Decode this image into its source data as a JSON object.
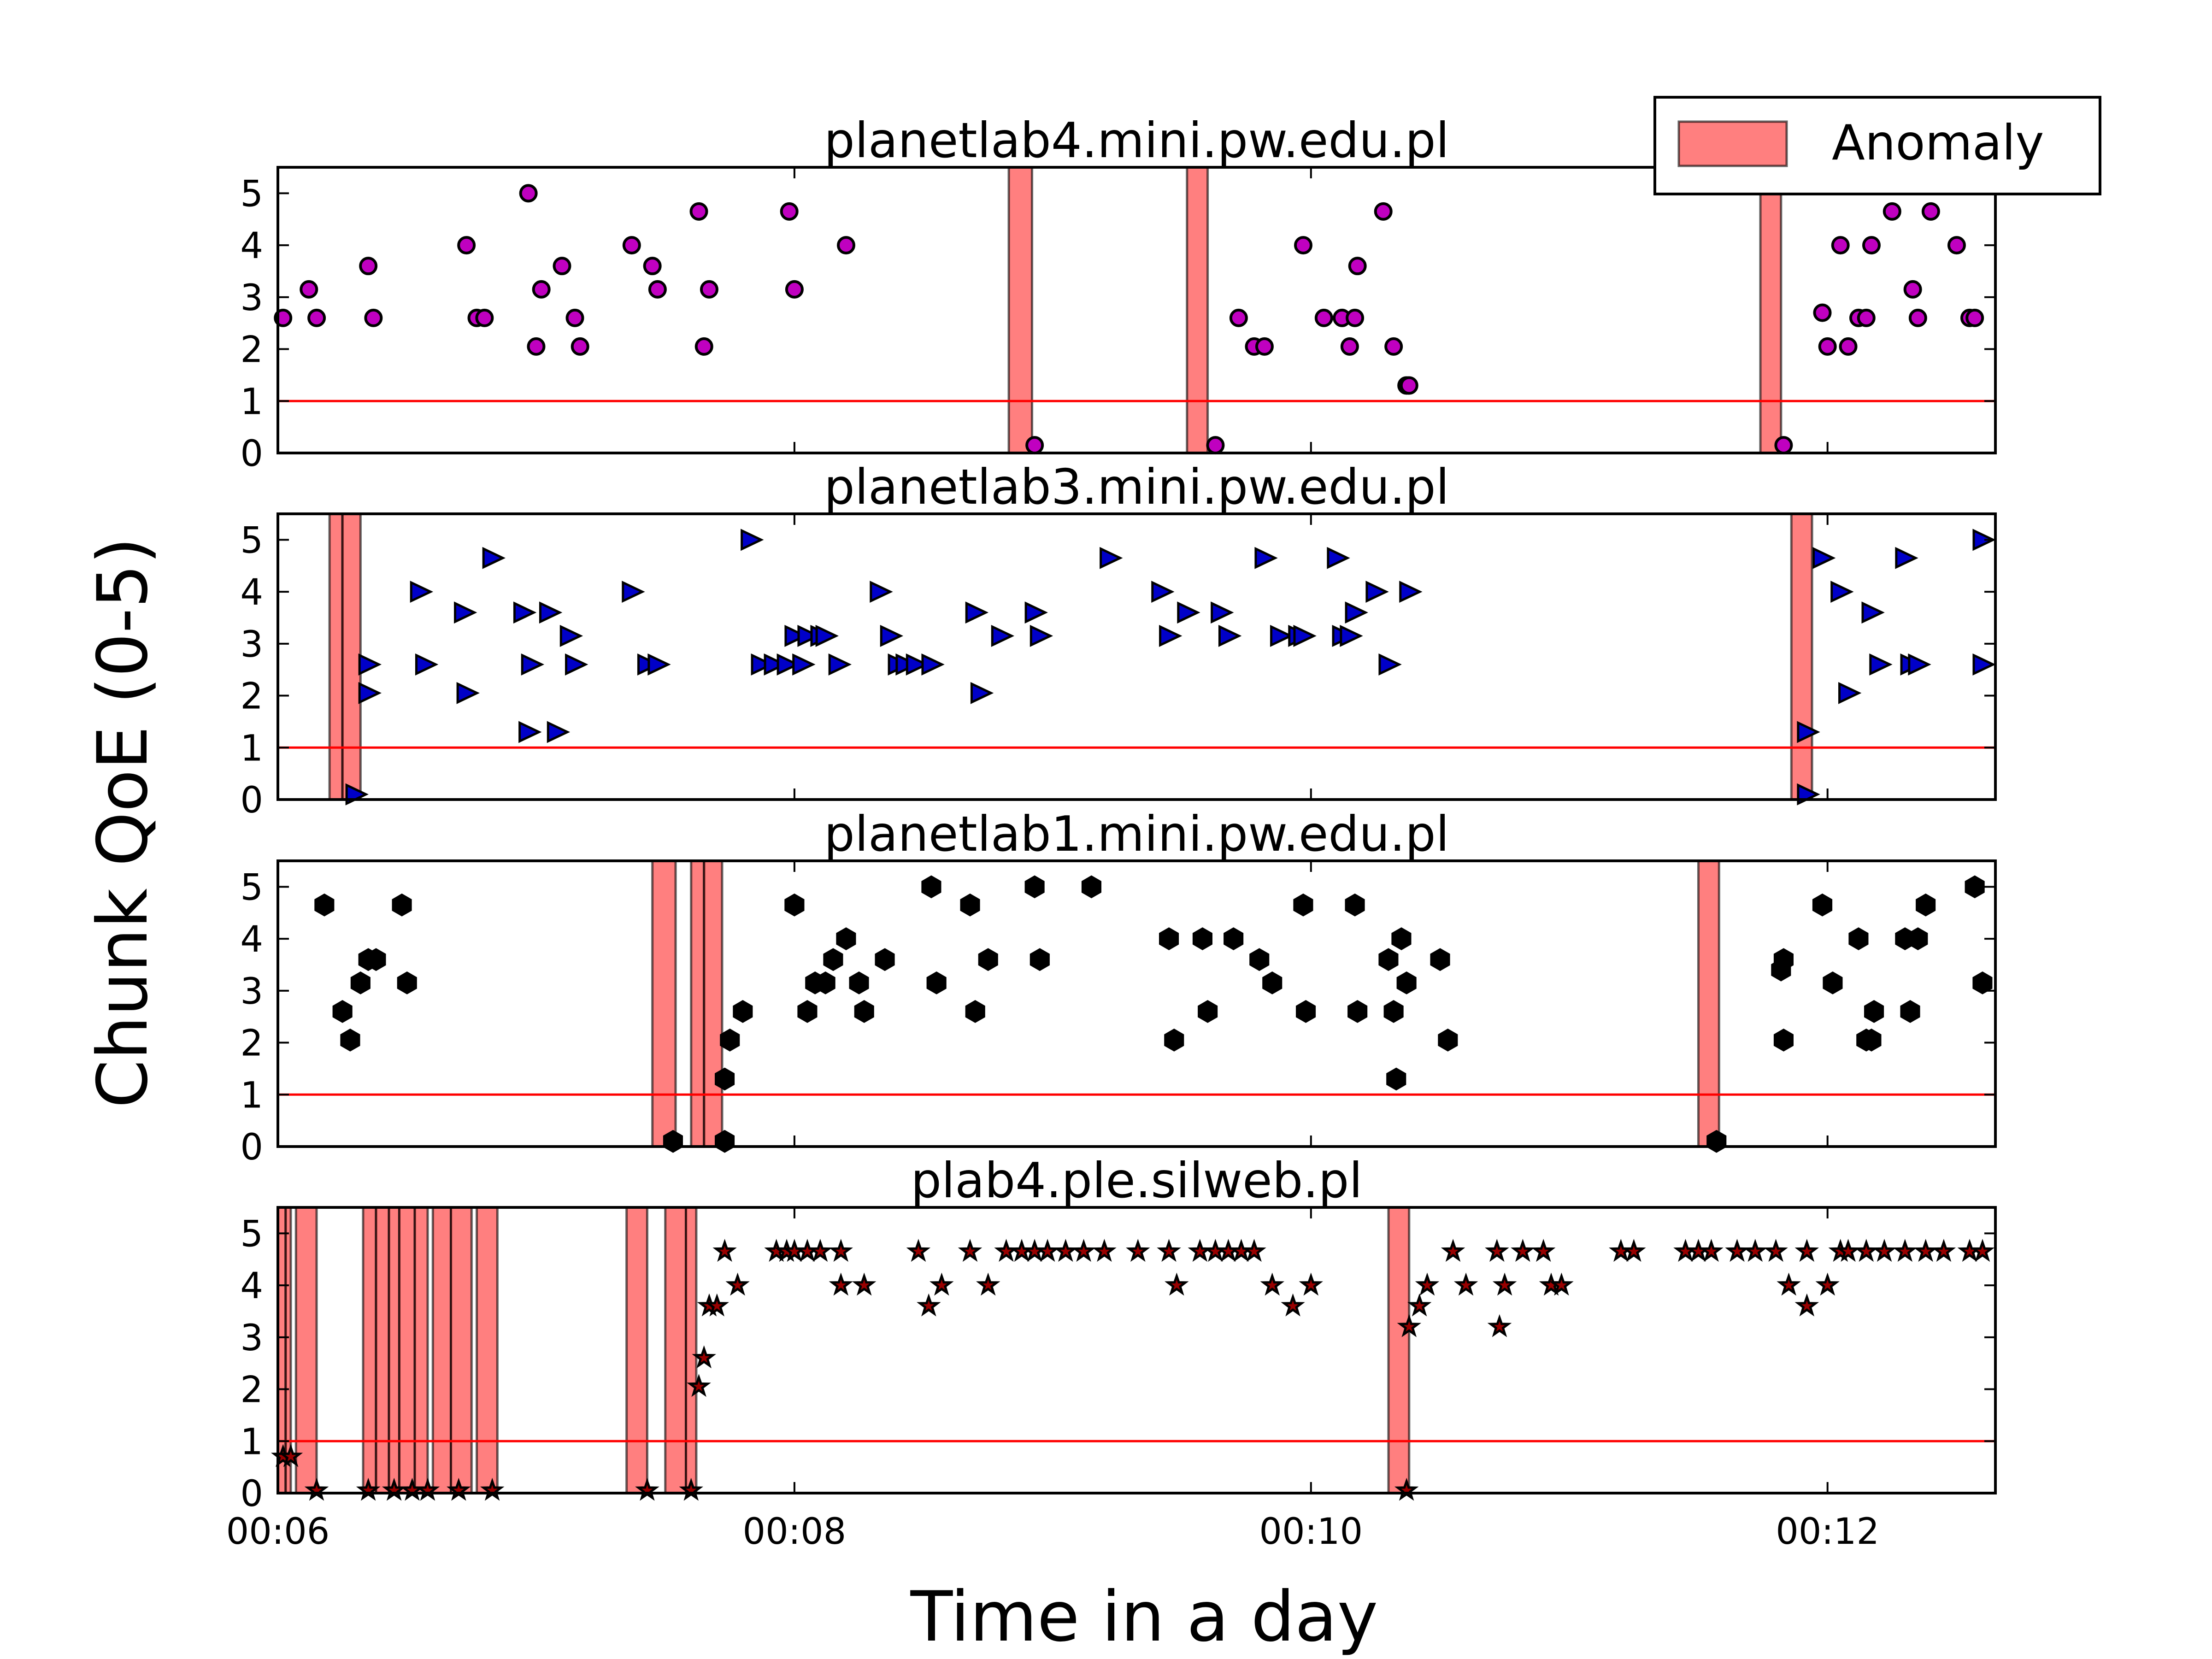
{
  "chart_data": {
    "type": "scatter",
    "ylabel": "Chunk QoE (0-5)",
    "xlabel": "Time in a day",
    "x_unit": "minutes",
    "xlim": [
      6.0,
      12.65
    ],
    "ylim": [
      0,
      5.5
    ],
    "x_ticks": [
      {
        "value": 6,
        "label": "00:06"
      },
      {
        "value": 8,
        "label": "00:08"
      },
      {
        "value": 10,
        "label": "00:10"
      },
      {
        "value": 12,
        "label": "00:12"
      }
    ],
    "y_ticks": [
      "0",
      "1",
      "2",
      "3",
      "4",
      "5"
    ],
    "threshold": 1,
    "legend": {
      "label": "Anomaly",
      "placement": "top-right"
    },
    "colors": {
      "anomaly": "#ff0000",
      "threshold": "#ff0000",
      "marker_edge": "#000000"
    },
    "panels": [
      {
        "title": "planetlab4.mini.pw.edu.pl",
        "marker": "circle",
        "color": "#c000c0",
        "anomalies": [
          [
            8.83,
            8.92
          ],
          [
            9.52,
            9.6
          ],
          [
            11.74,
            11.82
          ]
        ],
        "points": [
          [
            6.02,
            2.6
          ],
          [
            6.12,
            3.15
          ],
          [
            6.15,
            2.6
          ],
          [
            6.35,
            3.6
          ],
          [
            6.37,
            2.6
          ],
          [
            6.73,
            4.0
          ],
          [
            6.77,
            2.6
          ],
          [
            6.8,
            2.6
          ],
          [
            6.97,
            5.0
          ],
          [
            7.0,
            2.05
          ],
          [
            7.02,
            3.15
          ],
          [
            7.1,
            3.6
          ],
          [
            7.15,
            2.6
          ],
          [
            7.17,
            2.05
          ],
          [
            7.37,
            4.0
          ],
          [
            7.45,
            3.6
          ],
          [
            7.47,
            3.15
          ],
          [
            7.63,
            4.65
          ],
          [
            7.65,
            2.05
          ],
          [
            7.67,
            3.15
          ],
          [
            7.98,
            4.65
          ],
          [
            8.0,
            3.15
          ],
          [
            8.2,
            4.0
          ],
          [
            8.93,
            0.15
          ],
          [
            9.63,
            0.15
          ],
          [
            9.72,
            2.6
          ],
          [
            9.78,
            2.05
          ],
          [
            9.82,
            2.05
          ],
          [
            9.97,
            4.0
          ],
          [
            10.05,
            2.6
          ],
          [
            10.12,
            2.6
          ],
          [
            10.15,
            2.05
          ],
          [
            10.17,
            2.6
          ],
          [
            10.18,
            3.6
          ],
          [
            10.28,
            4.65
          ],
          [
            10.32,
            2.05
          ],
          [
            10.37,
            1.3
          ],
          [
            10.38,
            1.3
          ],
          [
            11.83,
            0.15
          ],
          [
            11.98,
            2.7
          ],
          [
            12.0,
            2.05
          ],
          [
            12.05,
            4.0
          ],
          [
            12.08,
            2.05
          ],
          [
            12.12,
            2.6
          ],
          [
            12.15,
            2.6
          ],
          [
            12.17,
            4.0
          ],
          [
            12.25,
            4.65
          ],
          [
            12.33,
            3.15
          ],
          [
            12.35,
            2.6
          ],
          [
            12.4,
            4.65
          ],
          [
            12.5,
            4.0
          ],
          [
            12.55,
            2.6
          ],
          [
            12.57,
            2.6
          ]
        ]
      },
      {
        "title": "planetlab3.mini.pw.edu.pl",
        "marker": "triangle-right",
        "color": "#0000c8",
        "anomalies": [
          [
            6.2,
            6.25
          ],
          [
            6.25,
            6.32
          ],
          [
            11.86,
            11.94
          ]
        ],
        "points": [
          [
            6.3,
            0.1
          ],
          [
            6.35,
            2.6
          ],
          [
            6.35,
            2.05
          ],
          [
            6.55,
            4.0
          ],
          [
            6.57,
            2.6
          ],
          [
            6.72,
            3.6
          ],
          [
            6.73,
            2.05
          ],
          [
            6.83,
            4.65
          ],
          [
            6.95,
            3.6
          ],
          [
            6.97,
            1.3
          ],
          [
            6.98,
            2.6
          ],
          [
            7.05,
            3.6
          ],
          [
            7.08,
            1.3
          ],
          [
            7.13,
            3.15
          ],
          [
            7.15,
            2.6
          ],
          [
            7.37,
            4.0
          ],
          [
            7.43,
            2.6
          ],
          [
            7.47,
            2.6
          ],
          [
            7.83,
            5.0
          ],
          [
            7.87,
            2.6
          ],
          [
            7.92,
            2.6
          ],
          [
            7.97,
            2.6
          ],
          [
            8.0,
            3.15
          ],
          [
            8.03,
            2.6
          ],
          [
            8.05,
            3.15
          ],
          [
            8.1,
            3.15
          ],
          [
            8.12,
            3.15
          ],
          [
            8.17,
            2.6
          ],
          [
            8.33,
            4.0
          ],
          [
            8.37,
            3.15
          ],
          [
            8.4,
            2.6
          ],
          [
            8.43,
            2.6
          ],
          [
            8.47,
            2.6
          ],
          [
            8.53,
            2.6
          ],
          [
            8.7,
            3.6
          ],
          [
            8.72,
            2.05
          ],
          [
            8.8,
            3.15
          ],
          [
            8.93,
            3.6
          ],
          [
            8.95,
            3.15
          ],
          [
            9.22,
            4.65
          ],
          [
            9.42,
            4.0
          ],
          [
            9.45,
            3.15
          ],
          [
            9.52,
            3.6
          ],
          [
            9.65,
            3.6
          ],
          [
            9.68,
            3.15
          ],
          [
            9.82,
            4.65
          ],
          [
            9.88,
            3.15
          ],
          [
            9.95,
            3.15
          ],
          [
            9.97,
            3.15
          ],
          [
            10.1,
            4.65
          ],
          [
            10.12,
            3.15
          ],
          [
            10.15,
            3.15
          ],
          [
            10.17,
            3.6
          ],
          [
            10.25,
            4.0
          ],
          [
            10.3,
            2.6
          ],
          [
            10.38,
            4.0
          ],
          [
            11.92,
            1.3
          ],
          [
            11.92,
            0.1
          ],
          [
            11.98,
            4.65
          ],
          [
            12.05,
            4.0
          ],
          [
            12.08,
            2.05
          ],
          [
            12.17,
            3.6
          ],
          [
            12.2,
            2.6
          ],
          [
            12.3,
            4.65
          ],
          [
            12.32,
            2.6
          ],
          [
            12.35,
            2.6
          ],
          [
            12.6,
            5.0
          ],
          [
            12.6,
            2.6
          ]
        ]
      },
      {
        "title": "planetlab1.mini.pw.edu.pl",
        "marker": "hexagon",
        "color": "#000000",
        "anomalies": [
          [
            7.45,
            7.54
          ],
          [
            7.6,
            7.65
          ],
          [
            7.65,
            7.72
          ],
          [
            11.5,
            11.58
          ]
        ],
        "points": [
          [
            6.18,
            4.65
          ],
          [
            6.25,
            2.6
          ],
          [
            6.28,
            2.05
          ],
          [
            6.32,
            3.15
          ],
          [
            6.35,
            3.6
          ],
          [
            6.38,
            3.6
          ],
          [
            6.48,
            4.65
          ],
          [
            6.5,
            3.15
          ],
          [
            7.53,
            0.1
          ],
          [
            7.73,
            0.1
          ],
          [
            7.73,
            1.3
          ],
          [
            7.75,
            2.05
          ],
          [
            7.8,
            2.6
          ],
          [
            8.0,
            4.65
          ],
          [
            8.05,
            2.6
          ],
          [
            8.08,
            3.15
          ],
          [
            8.12,
            3.15
          ],
          [
            8.15,
            3.6
          ],
          [
            8.2,
            4.0
          ],
          [
            8.25,
            3.15
          ],
          [
            8.27,
            2.6
          ],
          [
            8.35,
            3.6
          ],
          [
            8.53,
            5.0
          ],
          [
            8.55,
            3.15
          ],
          [
            8.68,
            4.65
          ],
          [
            8.7,
            2.6
          ],
          [
            8.75,
            3.6
          ],
          [
            8.93,
            5.0
          ],
          [
            8.95,
            3.6
          ],
          [
            9.15,
            5.0
          ],
          [
            9.45,
            4.0
          ],
          [
            9.47,
            2.05
          ],
          [
            9.58,
            4.0
          ],
          [
            9.6,
            2.6
          ],
          [
            9.7,
            4.0
          ],
          [
            9.8,
            3.6
          ],
          [
            9.85,
            3.15
          ],
          [
            9.97,
            4.65
          ],
          [
            9.98,
            2.6
          ],
          [
            10.17,
            4.65
          ],
          [
            10.18,
            2.6
          ],
          [
            10.3,
            3.6
          ],
          [
            10.32,
            2.6
          ],
          [
            10.33,
            1.3
          ],
          [
            10.35,
            4.0
          ],
          [
            10.37,
            3.15
          ],
          [
            10.5,
            3.6
          ],
          [
            10.53,
            2.05
          ],
          [
            11.57,
            0.1
          ],
          [
            11.82,
            3.4
          ],
          [
            11.83,
            3.6
          ],
          [
            11.83,
            2.05
          ],
          [
            11.98,
            4.65
          ],
          [
            12.02,
            3.15
          ],
          [
            12.12,
            4.0
          ],
          [
            12.15,
            2.05
          ],
          [
            12.17,
            2.05
          ],
          [
            12.18,
            2.6
          ],
          [
            12.3,
            4.0
          ],
          [
            12.32,
            2.6
          ],
          [
            12.35,
            4.0
          ],
          [
            12.38,
            4.65
          ],
          [
            12.57,
            5.0
          ],
          [
            12.6,
            3.15
          ]
        ]
      },
      {
        "title": "plab4.ple.silweb.pl",
        "marker": "star",
        "color": "#990000",
        "anomalies": [
          [
            6.0,
            6.03
          ],
          [
            6.03,
            6.05
          ],
          [
            6.07,
            6.15
          ],
          [
            6.33,
            6.38
          ],
          [
            6.38,
            6.43
          ],
          [
            6.43,
            6.47
          ],
          [
            6.47,
            6.53
          ],
          [
            6.53,
            6.58
          ],
          [
            6.6,
            6.67
          ],
          [
            6.67,
            6.75
          ],
          [
            6.77,
            6.85
          ],
          [
            7.35,
            7.43
          ],
          [
            7.5,
            7.58
          ],
          [
            7.58,
            7.62
          ],
          [
            10.3,
            10.38
          ]
        ],
        "points": [
          [
            6.02,
            0.7
          ],
          [
            6.05,
            0.7
          ],
          [
            6.15,
            0.05
          ],
          [
            6.35,
            0.05
          ],
          [
            6.45,
            0.05
          ],
          [
            6.52,
            0.05
          ],
          [
            6.58,
            0.05
          ],
          [
            6.7,
            0.05
          ],
          [
            6.83,
            0.05
          ],
          [
            7.43,
            0.05
          ],
          [
            7.6,
            0.05
          ],
          [
            7.63,
            2.05
          ],
          [
            7.65,
            2.6
          ],
          [
            7.67,
            3.6
          ],
          [
            7.7,
            3.6
          ],
          [
            7.73,
            4.65
          ],
          [
            7.78,
            4.0
          ],
          [
            7.93,
            4.65
          ],
          [
            7.97,
            4.65
          ],
          [
            8.0,
            4.65
          ],
          [
            8.05,
            4.65
          ],
          [
            8.1,
            4.65
          ],
          [
            8.18,
            4.65
          ],
          [
            8.18,
            4.0
          ],
          [
            8.27,
            4.0
          ],
          [
            8.48,
            4.65
          ],
          [
            8.52,
            3.6
          ],
          [
            8.57,
            4.0
          ],
          [
            8.68,
            4.65
          ],
          [
            8.75,
            4.0
          ],
          [
            8.82,
            4.65
          ],
          [
            8.88,
            4.65
          ],
          [
            8.93,
            4.65
          ],
          [
            8.98,
            4.65
          ],
          [
            9.05,
            4.65
          ],
          [
            9.12,
            4.65
          ],
          [
            9.2,
            4.65
          ],
          [
            9.33,
            4.65
          ],
          [
            9.45,
            4.65
          ],
          [
            9.48,
            4.0
          ],
          [
            9.57,
            4.65
          ],
          [
            9.63,
            4.65
          ],
          [
            9.68,
            4.65
          ],
          [
            9.73,
            4.65
          ],
          [
            9.78,
            4.65
          ],
          [
            9.85,
            4.0
          ],
          [
            9.93,
            3.6
          ],
          [
            10.0,
            4.0
          ],
          [
            10.37,
            0.05
          ],
          [
            10.38,
            3.2
          ],
          [
            10.42,
            3.6
          ],
          [
            10.45,
            4.0
          ],
          [
            10.55,
            4.65
          ],
          [
            10.6,
            4.0
          ],
          [
            10.72,
            4.65
          ],
          [
            10.73,
            3.2
          ],
          [
            10.75,
            4.0
          ],
          [
            10.82,
            4.65
          ],
          [
            10.9,
            4.65
          ],
          [
            10.93,
            4.0
          ],
          [
            10.97,
            4.0
          ],
          [
            11.2,
            4.65
          ],
          [
            11.25,
            4.65
          ],
          [
            11.45,
            4.65
          ],
          [
            11.5,
            4.65
          ],
          [
            11.55,
            4.65
          ],
          [
            11.65,
            4.65
          ],
          [
            11.72,
            4.65
          ],
          [
            11.8,
            4.65
          ],
          [
            11.92,
            4.65
          ],
          [
            12.05,
            4.65
          ],
          [
            11.85,
            4.0
          ],
          [
            11.92,
            3.6
          ],
          [
            12.0,
            4.0
          ],
          [
            12.08,
            4.65
          ],
          [
            12.15,
            4.65
          ],
          [
            12.22,
            4.65
          ],
          [
            12.3,
            4.65
          ],
          [
            12.38,
            4.65
          ],
          [
            12.45,
            4.65
          ],
          [
            12.55,
            4.65
          ],
          [
            12.6,
            4.65
          ]
        ]
      }
    ]
  }
}
